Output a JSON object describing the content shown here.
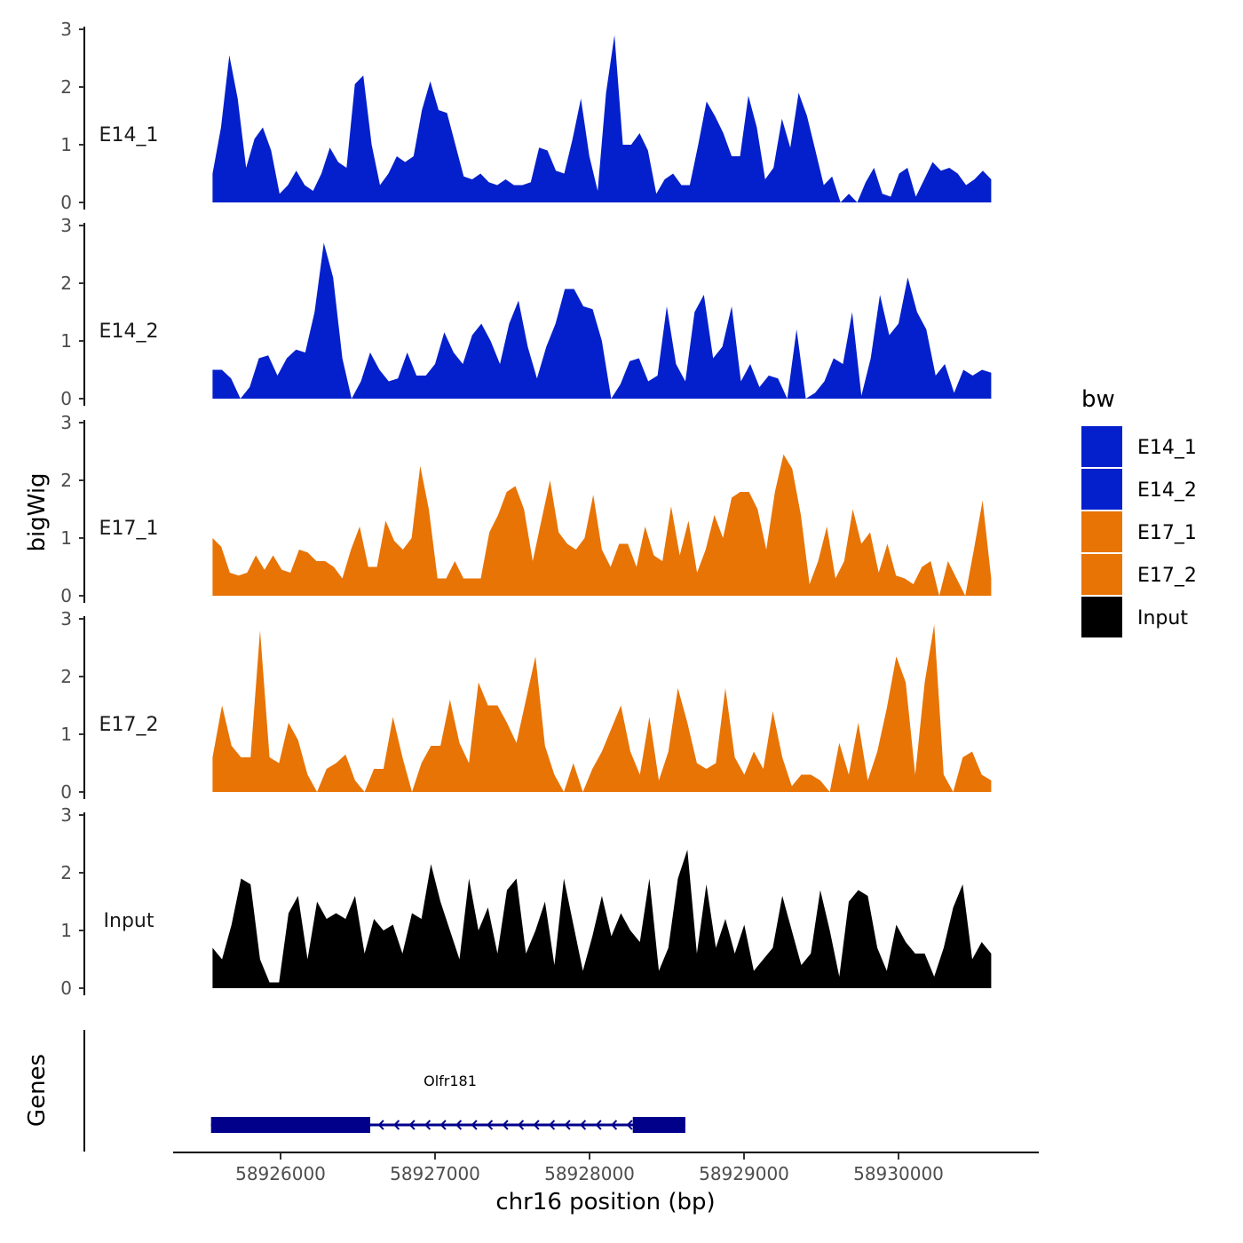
{
  "chart_data": {
    "type": "area",
    "ylabel": "bigWig",
    "xlabel": "chr16 position (bp)",
    "genes_label": "Genes",
    "ylim": [
      0,
      3
    ],
    "y_ticks": [
      "0",
      "1",
      "2",
      "3"
    ],
    "xlim": [
      58925300,
      58930900
    ],
    "x_ticks": [
      {
        "value": 58926000,
        "label": "58926000"
      },
      {
        "value": 58927000,
        "label": "58927000"
      },
      {
        "value": 58928000,
        "label": "58928000"
      },
      {
        "value": 58929000,
        "label": "58929000"
      },
      {
        "value": 58930000,
        "label": "58930000"
      }
    ],
    "x_start": 58925560,
    "x_end": 58930600,
    "legend": {
      "title": "bw",
      "position": "right",
      "items": [
        {
          "label": "E14_1",
          "color": "#0420CC"
        },
        {
          "label": "E14_2",
          "color": "#0420CC"
        },
        {
          "label": "E17_1",
          "color": "#E87406"
        },
        {
          "label": "E17_2",
          "color": "#E87406"
        },
        {
          "label": "Input",
          "color": "#000000"
        }
      ]
    },
    "series": [
      {
        "name": "E14_1",
        "color": "#0420CC",
        "values": [
          0.5,
          1.3,
          2.55,
          1.8,
          0.6,
          1.1,
          1.3,
          0.9,
          0.15,
          0.3,
          0.55,
          0.3,
          0.2,
          0.5,
          0.95,
          0.7,
          0.6,
          2.05,
          2.2,
          1.0,
          0.3,
          0.5,
          0.8,
          0.7,
          0.8,
          1.6,
          2.1,
          1.6,
          1.55,
          1.0,
          0.45,
          0.4,
          0.5,
          0.35,
          0.3,
          0.4,
          0.3,
          0.3,
          0.35,
          0.95,
          0.9,
          0.55,
          0.5,
          1.1,
          1.8,
          0.8,
          0.2,
          1.9,
          2.9,
          1.0,
          1.0,
          1.2,
          0.9,
          0.15,
          0.4,
          0.5,
          0.3,
          0.3,
          1.0,
          1.75,
          1.5,
          1.2,
          0.8,
          0.8,
          1.85,
          1.3,
          0.4,
          0.6,
          1.45,
          0.95,
          1.9,
          1.5,
          0.9,
          0.3,
          0.45,
          0.0,
          0.15,
          0.0,
          0.35,
          0.6,
          0.15,
          0.1,
          0.5,
          0.6,
          0.1,
          0.4,
          0.7,
          0.55,
          0.6,
          0.5,
          0.3,
          0.4,
          0.55,
          0.4
        ]
      },
      {
        "name": "E14_2",
        "color": "#0420CC",
        "values": [
          0.5,
          0.5,
          0.35,
          0.0,
          0.2,
          0.7,
          0.75,
          0.4,
          0.7,
          0.85,
          0.8,
          1.5,
          2.7,
          2.1,
          0.7,
          0.0,
          0.3,
          0.8,
          0.5,
          0.3,
          0.35,
          0.8,
          0.4,
          0.4,
          0.6,
          1.15,
          0.8,
          0.6,
          1.1,
          1.3,
          1.0,
          0.6,
          1.3,
          1.7,
          0.9,
          0.35,
          0.9,
          1.3,
          1.9,
          1.9,
          1.6,
          1.55,
          1.0,
          0.0,
          0.25,
          0.65,
          0.7,
          0.3,
          0.4,
          1.6,
          0.6,
          0.3,
          1.5,
          1.8,
          0.7,
          0.9,
          1.6,
          0.3,
          0.6,
          0.2,
          0.4,
          0.35,
          0.0,
          1.2,
          0.0,
          0.1,
          0.3,
          0.7,
          0.6,
          1.5,
          0.05,
          0.7,
          1.8,
          1.1,
          1.3,
          2.1,
          1.5,
          1.2,
          0.4,
          0.6,
          0.1,
          0.5,
          0.4,
          0.5,
          0.45
        ]
      },
      {
        "name": "E17_1",
        "color": "#E87406",
        "values": [
          1.0,
          0.85,
          0.4,
          0.35,
          0.4,
          0.7,
          0.45,
          0.7,
          0.45,
          0.4,
          0.8,
          0.75,
          0.6,
          0.6,
          0.5,
          0.3,
          0.8,
          1.2,
          0.5,
          0.5,
          1.3,
          0.95,
          0.8,
          1.0,
          2.25,
          1.5,
          0.3,
          0.3,
          0.6,
          0.3,
          0.3,
          0.3,
          1.1,
          1.4,
          1.8,
          1.9,
          1.5,
          0.6,
          1.3,
          2.0,
          1.1,
          0.9,
          0.8,
          1.0,
          1.75,
          0.8,
          0.5,
          0.9,
          0.9,
          0.5,
          1.2,
          0.7,
          0.6,
          1.55,
          0.7,
          1.3,
          0.4,
          0.8,
          1.4,
          1.0,
          1.7,
          1.8,
          1.8,
          1.5,
          0.8,
          1.8,
          2.45,
          2.2,
          1.4,
          0.2,
          0.6,
          1.2,
          0.3,
          0.6,
          1.5,
          0.9,
          1.1,
          0.4,
          0.9,
          0.35,
          0.3,
          0.2,
          0.5,
          0.6,
          0.0,
          0.6,
          0.3,
          0.0,
          0.8,
          1.65,
          0.3
        ]
      },
      {
        "name": "E17_2",
        "color": "#E87406",
        "values": [
          0.6,
          1.5,
          0.8,
          0.6,
          0.6,
          2.8,
          0.6,
          0.5,
          1.2,
          0.9,
          0.3,
          0.0,
          0.4,
          0.5,
          0.65,
          0.2,
          0.0,
          0.4,
          0.4,
          1.3,
          0.6,
          0.0,
          0.5,
          0.8,
          0.8,
          1.6,
          0.85,
          0.5,
          1.9,
          1.5,
          1.5,
          1.2,
          0.85,
          1.6,
          2.35,
          0.8,
          0.3,
          0.0,
          0.5,
          0.0,
          0.4,
          0.7,
          1.1,
          1.5,
          0.7,
          0.3,
          1.3,
          0.2,
          0.7,
          1.8,
          1.2,
          0.5,
          0.4,
          0.5,
          1.8,
          0.6,
          0.3,
          0.7,
          0.4,
          1.4,
          0.6,
          0.1,
          0.3,
          0.3,
          0.2,
          0.0,
          0.85,
          0.3,
          1.2,
          0.2,
          0.7,
          1.45,
          2.35,
          1.9,
          0.3,
          1.9,
          2.9,
          0.3,
          0.0,
          0.6,
          0.7,
          0.3,
          0.2
        ]
      },
      {
        "name": "Input",
        "color": "#000000",
        "values": [
          0.7,
          0.5,
          1.1,
          1.9,
          1.8,
          0.5,
          0.1,
          0.1,
          1.3,
          1.6,
          0.5,
          1.5,
          1.2,
          1.3,
          1.2,
          1.6,
          0.6,
          1.2,
          1.0,
          1.1,
          0.6,
          1.3,
          1.2,
          2.15,
          1.5,
          1.0,
          0.5,
          1.9,
          1.0,
          1.4,
          0.6,
          1.7,
          1.9,
          0.6,
          1.0,
          1.5,
          0.4,
          1.9,
          1.1,
          0.3,
          0.9,
          1.6,
          0.9,
          1.3,
          1.0,
          0.8,
          1.9,
          0.3,
          0.7,
          1.9,
          2.4,
          0.6,
          1.8,
          0.7,
          1.2,
          0.6,
          1.1,
          0.3,
          0.5,
          0.7,
          1.6,
          1.0,
          0.4,
          0.6,
          1.7,
          1.0,
          0.2,
          1.5,
          1.7,
          1.6,
          0.7,
          0.3,
          1.1,
          0.8,
          0.6,
          0.6,
          0.2,
          0.7,
          1.4,
          1.8,
          0.5,
          0.8,
          0.6
        ]
      }
    ],
    "gene": {
      "name": "Olfr181",
      "start": 58925550,
      "end": 58928620,
      "exons": [
        [
          58925550,
          58926580
        ],
        [
          58928280,
          58928620
        ]
      ],
      "strand": "-",
      "color": "#00008B"
    }
  }
}
